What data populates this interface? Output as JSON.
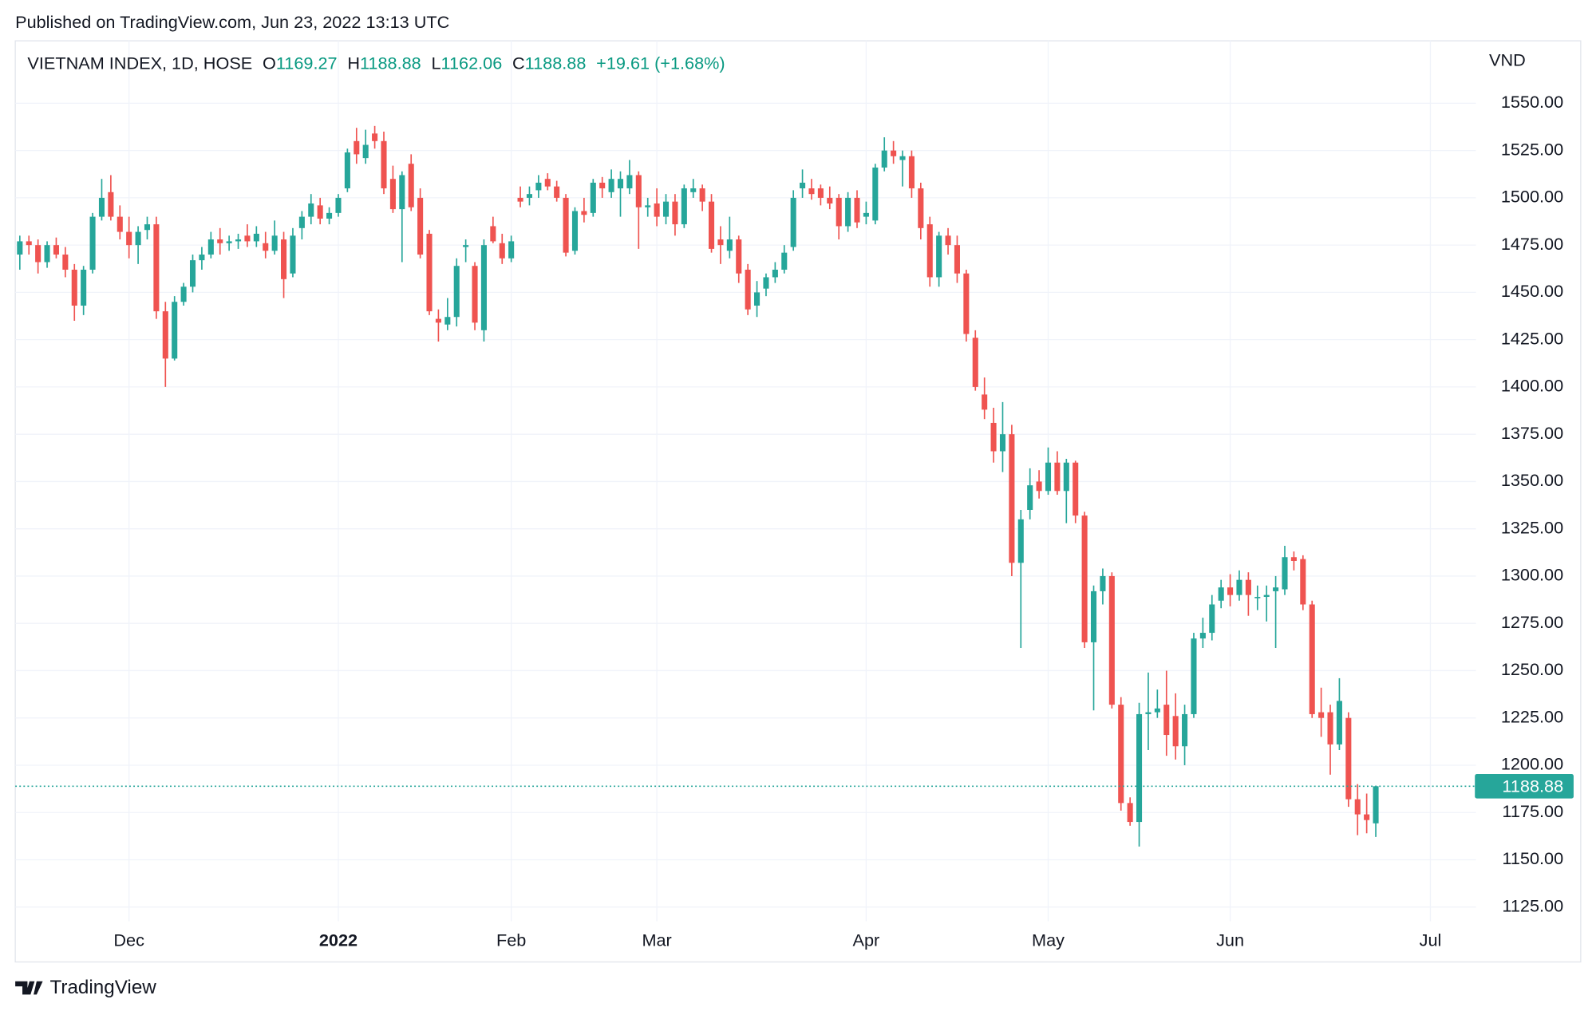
{
  "header": {
    "published": "Published on TradingView.com, Jun 23, 2022 13:13 UTC",
    "footer": "TradingView"
  },
  "chart_data": {
    "type": "candlestick",
    "symbol": "VIETNAM INDEX, 1D, HOSE",
    "ohlc_labels": [
      "O",
      "H",
      "L",
      "C"
    ],
    "change_label": "+19.61 (+1.68%)",
    "unit": "VND",
    "up_color": "#26a69a",
    "down_color": "#ef5350",
    "grid": true,
    "ylim": [
      1117.5,
      1583
    ],
    "yticks": [
      {
        "value": 1125,
        "label": "1125.00"
      },
      {
        "value": 1150,
        "label": "1150.00"
      },
      {
        "value": 1175,
        "label": "1175.00"
      },
      {
        "value": 1200,
        "label": "1200.00"
      },
      {
        "value": 1225,
        "label": "1225.00"
      },
      {
        "value": 1250,
        "label": "1250.00"
      },
      {
        "value": 1275,
        "label": "1275.00"
      },
      {
        "value": 1300,
        "label": "1300.00"
      },
      {
        "value": 1325,
        "label": "1325.00"
      },
      {
        "value": 1350,
        "label": "1350.00"
      },
      {
        "value": 1375,
        "label": "1375.00"
      },
      {
        "value": 1400,
        "label": "1400.00"
      },
      {
        "value": 1425,
        "label": "1425.00"
      },
      {
        "value": 1450,
        "label": "1450.00"
      },
      {
        "value": 1475,
        "label": "1475.00"
      },
      {
        "value": 1500,
        "label": "1500.00"
      },
      {
        "value": 1525,
        "label": "1525.00"
      },
      {
        "value": 1550,
        "label": "1550.00"
      }
    ],
    "xlim": [
      -0.5,
      160
    ],
    "xticks": [
      {
        "value": 12,
        "label": "Dec"
      },
      {
        "value": 35,
        "label": "2022"
      },
      {
        "value": 54,
        "label": "Feb"
      },
      {
        "value": 70,
        "label": "Mar"
      },
      {
        "value": 93,
        "label": "Apr"
      },
      {
        "value": 113,
        "label": "May"
      },
      {
        "value": 133,
        "label": "Jun"
      },
      {
        "value": 155,
        "label": "Jul"
      }
    ],
    "ohlc": [
      [
        1470,
        1480,
        1462,
        1477
      ],
      [
        1477,
        1480,
        1470,
        1475
      ],
      [
        1475,
        1478,
        1460,
        1466
      ],
      [
        1466,
        1477,
        1463,
        1475
      ],
      [
        1475,
        1479,
        1468,
        1470
      ],
      [
        1470,
        1474,
        1458,
        1462
      ],
      [
        1462,
        1465,
        1435,
        1443
      ],
      [
        1443,
        1464,
        1438,
        1462
      ],
      [
        1462,
        1492,
        1460,
        1490
      ],
      [
        1490,
        1510,
        1488,
        1500
      ],
      [
        1503,
        1512,
        1488,
        1490
      ],
      [
        1490,
        1496,
        1478,
        1482
      ],
      [
        1482,
        1490,
        1468,
        1475
      ],
      [
        1475,
        1485,
        1465,
        1482
      ],
      [
        1483,
        1490,
        1478,
        1486
      ],
      [
        1486,
        1490,
        1436,
        1440
      ],
      [
        1440,
        1445,
        1400,
        1415
      ],
      [
        1415,
        1448,
        1414,
        1445
      ],
      [
        1445,
        1455,
        1443,
        1453
      ],
      [
        1453,
        1470,
        1450,
        1467
      ],
      [
        1467,
        1474,
        1462,
        1470
      ],
      [
        1470,
        1482,
        1468,
        1478
      ],
      [
        1478,
        1484,
        1470,
        1476
      ],
      [
        1476,
        1480,
        1472,
        1477
      ],
      [
        1477,
        1481,
        1473,
        1478
      ],
      [
        1480,
        1486,
        1474,
        1477
      ],
      [
        1477,
        1485,
        1474,
        1481
      ],
      [
        1476,
        1482,
        1468,
        1472
      ],
      [
        1472,
        1488,
        1470,
        1480
      ],
      [
        1478,
        1482,
        1447,
        1457
      ],
      [
        1460,
        1484,
        1458,
        1480
      ],
      [
        1484,
        1493,
        1478,
        1490
      ],
      [
        1490,
        1502,
        1486,
        1497
      ],
      [
        1496,
        1500,
        1486,
        1489
      ],
      [
        1489,
        1495,
        1486,
        1492
      ],
      [
        1492,
        1502,
        1490,
        1500
      ],
      [
        1505,
        1526,
        1503,
        1524
      ],
      [
        1530,
        1537,
        1518,
        1523
      ],
      [
        1521,
        1536,
        1518,
        1528
      ],
      [
        1534,
        1538,
        1526,
        1530
      ],
      [
        1530,
        1535,
        1502,
        1505
      ],
      [
        1510,
        1517,
        1492,
        1494
      ],
      [
        1494,
        1514,
        1466,
        1512
      ],
      [
        1518,
        1523,
        1493,
        1495
      ],
      [
        1500,
        1505,
        1468,
        1470
      ],
      [
        1481,
        1483,
        1438,
        1440
      ],
      [
        1436,
        1441,
        1424,
        1434
      ],
      [
        1433,
        1447,
        1430,
        1437
      ],
      [
        1437,
        1468,
        1432,
        1464
      ],
      [
        1474,
        1478,
        1466,
        1475
      ],
      [
        1464,
        1466,
        1430,
        1434
      ],
      [
        1430,
        1478,
        1424,
        1475
      ],
      [
        1485,
        1490,
        1476,
        1477
      ],
      [
        1476,
        1481,
        1465,
        1468
      ],
      [
        1468,
        1480,
        1466,
        1477
      ],
      [
        1500,
        1506,
        1495,
        1498
      ],
      [
        1500,
        1506,
        1496,
        1502
      ],
      [
        1504,
        1512,
        1500,
        1508
      ],
      [
        1510,
        1513,
        1504,
        1506
      ],
      [
        1506,
        1509,
        1498,
        1500
      ],
      [
        1500,
        1502,
        1469,
        1471
      ],
      [
        1472,
        1495,
        1470,
        1493
      ],
      [
        1493,
        1500,
        1487,
        1491
      ],
      [
        1492,
        1510,
        1490,
        1508
      ],
      [
        1508,
        1511,
        1500,
        1505
      ],
      [
        1503,
        1515,
        1500,
        1510
      ],
      [
        1505,
        1514,
        1490,
        1510
      ],
      [
        1505,
        1520,
        1502,
        1512
      ],
      [
        1512,
        1514,
        1473,
        1495
      ],
      [
        1495,
        1500,
        1490,
        1496
      ],
      [
        1497,
        1505,
        1485,
        1490
      ],
      [
        1490,
        1502,
        1486,
        1498
      ],
      [
        1498,
        1502,
        1480,
        1486
      ],
      [
        1486,
        1507,
        1484,
        1505
      ],
      [
        1503,
        1510,
        1500,
        1505
      ],
      [
        1505,
        1507,
        1493,
        1498
      ],
      [
        1498,
        1502,
        1471,
        1473
      ],
      [
        1478,
        1485,
        1465,
        1475
      ],
      [
        1472,
        1490,
        1468,
        1478
      ],
      [
        1478,
        1480,
        1455,
        1460
      ],
      [
        1462,
        1465,
        1438,
        1441
      ],
      [
        1443,
        1456,
        1437,
        1450
      ],
      [
        1452,
        1460,
        1448,
        1458
      ],
      [
        1458,
        1466,
        1455,
        1462
      ],
      [
        1462,
        1475,
        1460,
        1471
      ],
      [
        1474,
        1504,
        1472,
        1500
      ],
      [
        1505,
        1515,
        1500,
        1508
      ],
      [
        1505,
        1510,
        1499,
        1502
      ],
      [
        1505,
        1507,
        1496,
        1500
      ],
      [
        1500,
        1506,
        1494,
        1497
      ],
      [
        1500,
        1502,
        1478,
        1485
      ],
      [
        1485,
        1503,
        1482,
        1500
      ],
      [
        1500,
        1504,
        1484,
        1487
      ],
      [
        1490,
        1498,
        1486,
        1492
      ],
      [
        1488,
        1518,
        1486,
        1516
      ],
      [
        1516,
        1532,
        1514,
        1525
      ],
      [
        1525,
        1530,
        1518,
        1522
      ],
      [
        1520,
        1525,
        1506,
        1522
      ],
      [
        1522,
        1525,
        1500,
        1505
      ],
      [
        1505,
        1508,
        1478,
        1484
      ],
      [
        1486,
        1490,
        1453,
        1458
      ],
      [
        1458,
        1482,
        1453,
        1480
      ],
      [
        1480,
        1484,
        1470,
        1475
      ],
      [
        1475,
        1480,
        1455,
        1460
      ],
      [
        1460,
        1462,
        1424,
        1428
      ],
      [
        1426,
        1430,
        1398,
        1400
      ],
      [
        1396,
        1405,
        1383,
        1388
      ],
      [
        1381,
        1389,
        1360,
        1366
      ],
      [
        1366,
        1392,
        1355,
        1375
      ],
      [
        1375,
        1380,
        1300,
        1307
      ],
      [
        1307,
        1335,
        1262,
        1330
      ],
      [
        1335,
        1357,
        1330,
        1348
      ],
      [
        1350,
        1356,
        1341,
        1345
      ],
      [
        1345,
        1368,
        1343,
        1360
      ],
      [
        1360,
        1366,
        1343,
        1345
      ],
      [
        1345,
        1362,
        1328,
        1360
      ],
      [
        1360,
        1361,
        1328,
        1332
      ],
      [
        1332,
        1334,
        1262,
        1265
      ],
      [
        1265,
        1295,
        1229,
        1292
      ],
      [
        1292,
        1304,
        1285,
        1300
      ],
      [
        1300,
        1302,
        1230,
        1232
      ],
      [
        1232,
        1236,
        1176,
        1180
      ],
      [
        1180,
        1183,
        1168,
        1170
      ],
      [
        1170,
        1233,
        1157,
        1227
      ],
      [
        1227,
        1249,
        1208,
        1228
      ],
      [
        1228,
        1240,
        1225,
        1230
      ],
      [
        1232,
        1250,
        1205,
        1216
      ],
      [
        1226,
        1238,
        1203,
        1210
      ],
      [
        1210,
        1232,
        1200,
        1227
      ],
      [
        1227,
        1270,
        1225,
        1267
      ],
      [
        1267,
        1278,
        1262,
        1270
      ],
      [
        1270,
        1290,
        1266,
        1285
      ],
      [
        1287,
        1298,
        1283,
        1294
      ],
      [
        1294,
        1301,
        1284,
        1290
      ],
      [
        1290,
        1303,
        1287,
        1298
      ],
      [
        1298,
        1302,
        1279,
        1290
      ],
      [
        1289,
        1295,
        1282,
        1289
      ],
      [
        1289,
        1295,
        1276,
        1290
      ],
      [
        1292,
        1300,
        1262,
        1294
      ],
      [
        1293,
        1316,
        1290,
        1310
      ],
      [
        1310,
        1313,
        1303,
        1308
      ],
      [
        1309,
        1311,
        1282,
        1285
      ],
      [
        1285,
        1287,
        1225,
        1227
      ],
      [
        1228,
        1241,
        1215,
        1225
      ],
      [
        1228,
        1232,
        1195,
        1211
      ],
      [
        1211,
        1246,
        1208,
        1234
      ],
      [
        1225,
        1228,
        1178,
        1182
      ],
      [
        1182,
        1190,
        1163,
        1174
      ],
      [
        1174,
        1185,
        1164,
        1171
      ],
      [
        1169.27,
        1188.88,
        1162.06,
        1188.88
      ]
    ]
  }
}
